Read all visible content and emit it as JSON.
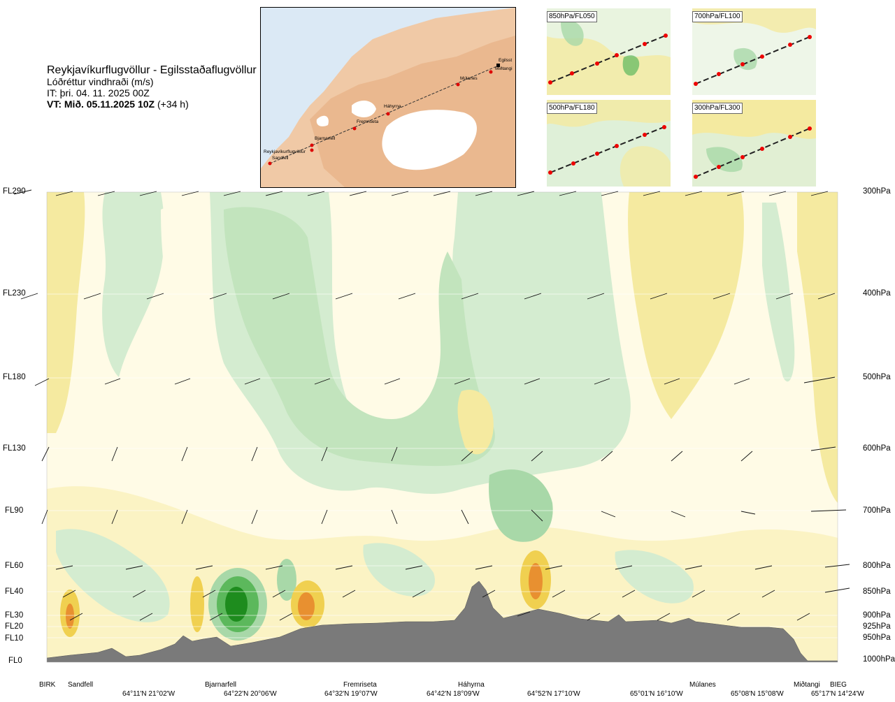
{
  "header": {
    "route": "Reykjavíkurflugvöllur - Egilsstaðaflugvöllur",
    "parameter": "Lóðréttur vindhraði (m/s)",
    "it": "IT: þri. 04. 11. 2025 00Z",
    "vt_bold": "VT: Mið. 05.11.2025 10Z",
    "vt_lead": "(+34 h)"
  },
  "overview_map": {
    "places": [
      "Reykjavíkurflugvöllur",
      "Sandfell",
      "Bjarnarfell",
      "Fremriseta",
      "Háhyrna",
      "Múlanes",
      "Miðtangi",
      "Egilsst"
    ]
  },
  "panels": [
    {
      "label": "850hPa/FL050"
    },
    {
      "label": "700hPa/FL100"
    },
    {
      "label": "500hPa/FL180"
    },
    {
      "label": "300hPa/FL300"
    }
  ],
  "levels": [
    {
      "fl": "FL290",
      "hpa": "300hPa"
    },
    {
      "fl": "FL230",
      "hpa": "400hPa"
    },
    {
      "fl": "FL180",
      "hpa": "500hPa"
    },
    {
      "fl": "FL130",
      "hpa": "600hPa"
    },
    {
      "fl": "FL90",
      "hpa": "700hPa"
    },
    {
      "fl": "FL60",
      "hpa": "800hPa"
    },
    {
      "fl": "FL40",
      "hpa": "850hPa"
    },
    {
      "fl": "FL30",
      "hpa": "900hPa"
    },
    {
      "fl": "FL20",
      "hpa": "925hPa"
    },
    {
      "fl": "FL10",
      "hpa": "950hPa"
    },
    {
      "fl": "FL0",
      "hpa": "1000hPa"
    }
  ],
  "route_points": [
    "BIRK",
    "Sandfell",
    "Bjarnarfell",
    "Fremriseta",
    "Háhyrna",
    "Múlanes",
    "Miðtangi",
    "BIEG"
  ],
  "coords": [
    "64°11'N 21°02'W",
    "64°22'N 20°06'W",
    "64°32'N 19°07'W",
    "64°42'N 18°09'W",
    "64°52'N 17°10'W",
    "65°01'N 16°10'W",
    "65°08'N 15°08'W",
    "65°17'N 14°24'W"
  ],
  "colors": {
    "strong_updraft": "#1e8c1e",
    "updraft": "#5cb85c",
    "weak_updraft": "#a8d8a8",
    "very_weak_updraft": "#d4ecd0",
    "neutral": "#fffbe6",
    "weak_downdraft": "#f5eaa0",
    "downdraft": "#f0d050",
    "strong_downdraft": "#e89030",
    "terrain": "#7a7a7a"
  },
  "chart_data": {
    "type": "heatmap",
    "quantity": "Lóðréttur vindhraði (m/s)",
    "x_categories": [
      "BIRK",
      "Sandfell",
      "Bjarnarfell",
      "Fremriseta",
      "Háhyrna",
      "Múlanes",
      "Miðtangi",
      "BIEG"
    ],
    "y_levels_hpa": [
      300,
      400,
      500,
      600,
      700,
      800,
      850,
      900,
      925,
      950,
      1000
    ],
    "y_flight_levels": [
      290,
      230,
      180,
      130,
      90,
      60,
      40,
      30,
      20,
      10,
      0
    ],
    "ylim_hpa": [
      1000,
      300
    ]
  }
}
